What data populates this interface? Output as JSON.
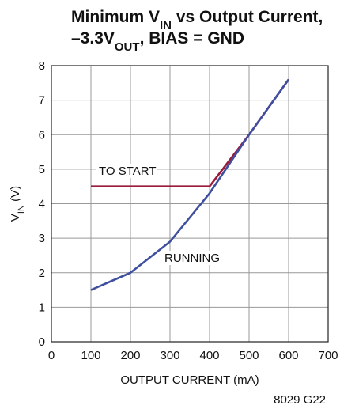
{
  "chart_data": {
    "type": "line",
    "title_lines": [
      [
        {
          "text": "Minimum V"
        },
        {
          "text": "IN",
          "sub": true
        },
        {
          "text": " vs Output Current,"
        }
      ],
      [
        {
          "text": "–3.3V"
        },
        {
          "text": "OUT",
          "sub": true
        },
        {
          "text": ", BIAS = GND"
        }
      ]
    ],
    "x_label": "OUTPUT CURRENT (mA)",
    "y_label": [
      {
        "text": "V"
      },
      {
        "text": "IN",
        "sub": true
      },
      {
        "text": " (V)"
      }
    ],
    "footnote": "8029 G22",
    "x": [
      100,
      200,
      300,
      400,
      500,
      600
    ],
    "series": [
      {
        "name": "TO START",
        "color": "#9b1b3d",
        "values": [
          4.5,
          null,
          null,
          4.5,
          6.0,
          7.6
        ]
      },
      {
        "name": "RUNNING",
        "color": "#3f4fa0",
        "values": [
          1.5,
          2.0,
          2.9,
          4.3,
          6.0,
          7.6
        ]
      }
    ],
    "xlim": [
      0,
      700
    ],
    "xticks": [
      0,
      100,
      200,
      300,
      400,
      500,
      600,
      700
    ],
    "ylim": [
      0,
      8
    ],
    "yticks": [
      0,
      1,
      2,
      3,
      4,
      5,
      6,
      7,
      8
    ],
    "grid": true
  }
}
